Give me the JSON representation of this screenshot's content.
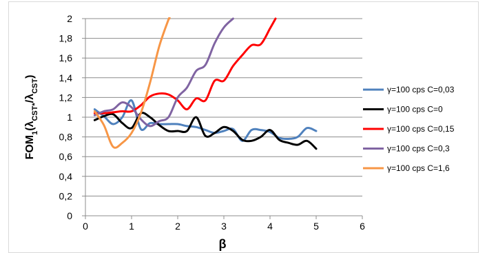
{
  "chart_data": {
    "type": "line",
    "xlabel": "β",
    "ylabel": {
      "prefix": "FOM",
      "sub1": "1",
      "open": "(λ",
      "sub2": "CST*",
      "slash": "/λ",
      "sub3": "CST",
      "close": ")"
    },
    "xlim": [
      0,
      6
    ],
    "ylim": [
      0,
      2
    ],
    "x_ticks": [
      "0",
      "1",
      "2",
      "3",
      "4",
      "5",
      "6"
    ],
    "y_ticks": [
      "0",
      "0,2",
      "0,4",
      "0,6",
      "0,8",
      "1",
      "1,2",
      "1,4",
      "1,6",
      "1,8",
      "2"
    ],
    "grid": "horizontal",
    "legend_position": "right",
    "series": [
      {
        "name": "γ=100 cps C=0,03",
        "color": "#4f81bd",
        "points": [
          [
            0.2,
            1.08
          ],
          [
            0.4,
            1.01
          ],
          [
            0.6,
            0.93
          ],
          [
            0.8,
            1.0
          ],
          [
            1.0,
            1.17
          ],
          [
            1.2,
            0.88
          ],
          [
            1.4,
            0.94
          ],
          [
            1.6,
            0.93
          ],
          [
            1.8,
            0.93
          ],
          [
            2.0,
            0.93
          ],
          [
            2.2,
            0.91
          ],
          [
            2.4,
            0.9
          ],
          [
            2.6,
            0.87
          ],
          [
            2.8,
            0.84
          ],
          [
            3.0,
            0.86
          ],
          [
            3.2,
            0.88
          ],
          [
            3.4,
            0.76
          ],
          [
            3.6,
            0.87
          ],
          [
            3.8,
            0.87
          ],
          [
            4.0,
            0.85
          ],
          [
            4.2,
            0.79
          ],
          [
            4.4,
            0.78
          ],
          [
            4.6,
            0.8
          ],
          [
            4.8,
            0.89
          ],
          [
            5.0,
            0.86
          ]
        ]
      },
      {
        "name": "γ=100 cps C=0",
        "color": "#000000",
        "points": [
          [
            0.2,
            0.97
          ],
          [
            0.4,
            1.01
          ],
          [
            0.6,
            1.03
          ],
          [
            0.8,
            0.94
          ],
          [
            1.0,
            0.89
          ],
          [
            1.2,
            1.04
          ],
          [
            1.4,
            1.0
          ],
          [
            1.6,
            0.92
          ],
          [
            1.8,
            0.86
          ],
          [
            2.0,
            0.86
          ],
          [
            2.2,
            0.86
          ],
          [
            2.4,
            1.0
          ],
          [
            2.6,
            0.81
          ],
          [
            2.8,
            0.84
          ],
          [
            3.0,
            0.9
          ],
          [
            3.2,
            0.86
          ],
          [
            3.4,
            0.77
          ],
          [
            3.6,
            0.76
          ],
          [
            3.8,
            0.8
          ],
          [
            4.0,
            0.87
          ],
          [
            4.2,
            0.77
          ],
          [
            4.4,
            0.74
          ],
          [
            4.6,
            0.72
          ],
          [
            4.8,
            0.76
          ],
          [
            5.0,
            0.68
          ]
        ]
      },
      {
        "name": "γ=100 cps C=0,15",
        "color": "#ff0000",
        "points": [
          [
            0.2,
            1.04
          ],
          [
            0.4,
            1.04
          ],
          [
            0.6,
            1.05
          ],
          [
            0.8,
            1.06
          ],
          [
            1.0,
            1.06
          ],
          [
            1.2,
            1.12
          ],
          [
            1.4,
            1.21
          ],
          [
            1.6,
            1.24
          ],
          [
            1.8,
            1.23
          ],
          [
            2.0,
            1.17
          ],
          [
            2.2,
            1.08
          ],
          [
            2.4,
            1.19
          ],
          [
            2.6,
            1.17
          ],
          [
            2.8,
            1.37
          ],
          [
            3.0,
            1.37
          ],
          [
            3.2,
            1.52
          ],
          [
            3.4,
            1.63
          ],
          [
            3.6,
            1.73
          ],
          [
            3.8,
            1.74
          ],
          [
            4.0,
            1.9
          ],
          [
            4.12,
            2.0
          ]
        ]
      },
      {
        "name": "γ=100 cps C=0,3",
        "color": "#8064a2",
        "points": [
          [
            0.2,
            1.02
          ],
          [
            0.4,
            1.06
          ],
          [
            0.6,
            1.08
          ],
          [
            0.8,
            1.15
          ],
          [
            1.0,
            1.1
          ],
          [
            1.2,
            0.98
          ],
          [
            1.4,
            0.91
          ],
          [
            1.6,
            0.96
          ],
          [
            1.8,
            1.0
          ],
          [
            2.0,
            1.2
          ],
          [
            2.2,
            1.3
          ],
          [
            2.4,
            1.47
          ],
          [
            2.6,
            1.53
          ],
          [
            2.8,
            1.75
          ],
          [
            3.0,
            1.91
          ],
          [
            3.2,
            2.0
          ]
        ]
      },
      {
        "name": "γ=100 cps C=1,6",
        "color": "#f79646",
        "points": [
          [
            0.2,
            1.06
          ],
          [
            0.4,
            0.92
          ],
          [
            0.6,
            0.7
          ],
          [
            0.8,
            0.74
          ],
          [
            1.0,
            0.84
          ],
          [
            1.2,
            1.04
          ],
          [
            1.4,
            1.35
          ],
          [
            1.6,
            1.72
          ],
          [
            1.8,
            1.99
          ],
          [
            1.82,
            2.0
          ]
        ]
      }
    ]
  }
}
